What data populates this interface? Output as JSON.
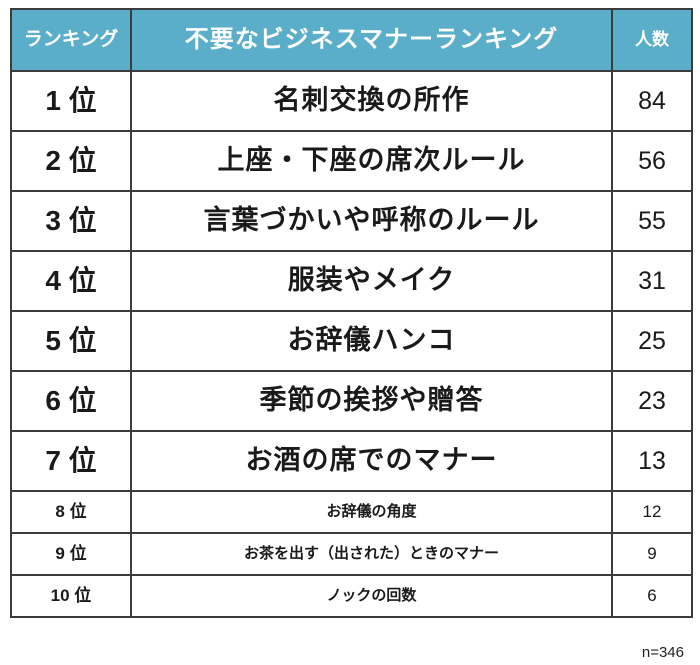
{
  "chart_data": {
    "type": "table",
    "title": "不要なビジネスマナーランキング",
    "columns": [
      "ランキング",
      "不要なビジネスマナーランキング",
      "人数"
    ],
    "categories": [
      "名刺交換の所作",
      "上座・下座の席次ルール",
      "言葉づかいや呼称のルール",
      "服装やメイク",
      "お辞儀ハンコ",
      "季節の挨拶や贈答",
      "お酒の席でのマナー",
      "お辞儀の角度",
      "お茶を出す（出された）ときのマナー",
      "ノックの回数"
    ],
    "values": [
      84,
      56,
      55,
      31,
      25,
      23,
      13,
      12,
      9,
      6
    ],
    "sample_size_note": "n=346"
  },
  "header": {
    "rank": "ランキング",
    "title": "不要なビジネスマナーランキング",
    "count": "人数"
  },
  "rows": [
    {
      "rank": "1 位",
      "item": "名刺交換の所作",
      "count": "84"
    },
    {
      "rank": "2 位",
      "item": "上座・下座の席次ルール",
      "count": "56"
    },
    {
      "rank": "3 位",
      "item": "言葉づかいや呼称のルール",
      "count": "55"
    },
    {
      "rank": "4 位",
      "item": "服装やメイク",
      "count": "31"
    },
    {
      "rank": "5 位",
      "item": "お辞儀ハンコ",
      "count": "25"
    },
    {
      "rank": "6 位",
      "item": "季節の挨拶や贈答",
      "count": "23"
    },
    {
      "rank": "7 位",
      "item": "お酒の席でのマナー",
      "count": "13"
    },
    {
      "rank": "8 位",
      "item": "お辞儀の角度",
      "count": "12"
    },
    {
      "rank": "9 位",
      "item": "お茶を出す（出された）ときのマナー",
      "count": "9"
    },
    {
      "rank": "10 位",
      "item": "ノックの回数",
      "count": "6"
    }
  ],
  "footer": {
    "sample_size": "n=346"
  },
  "colors": {
    "header_bg": "#5BAEC9",
    "header_text": "#FFFFFF",
    "border": "#3C3C3C",
    "text": "#1A1A1A"
  }
}
